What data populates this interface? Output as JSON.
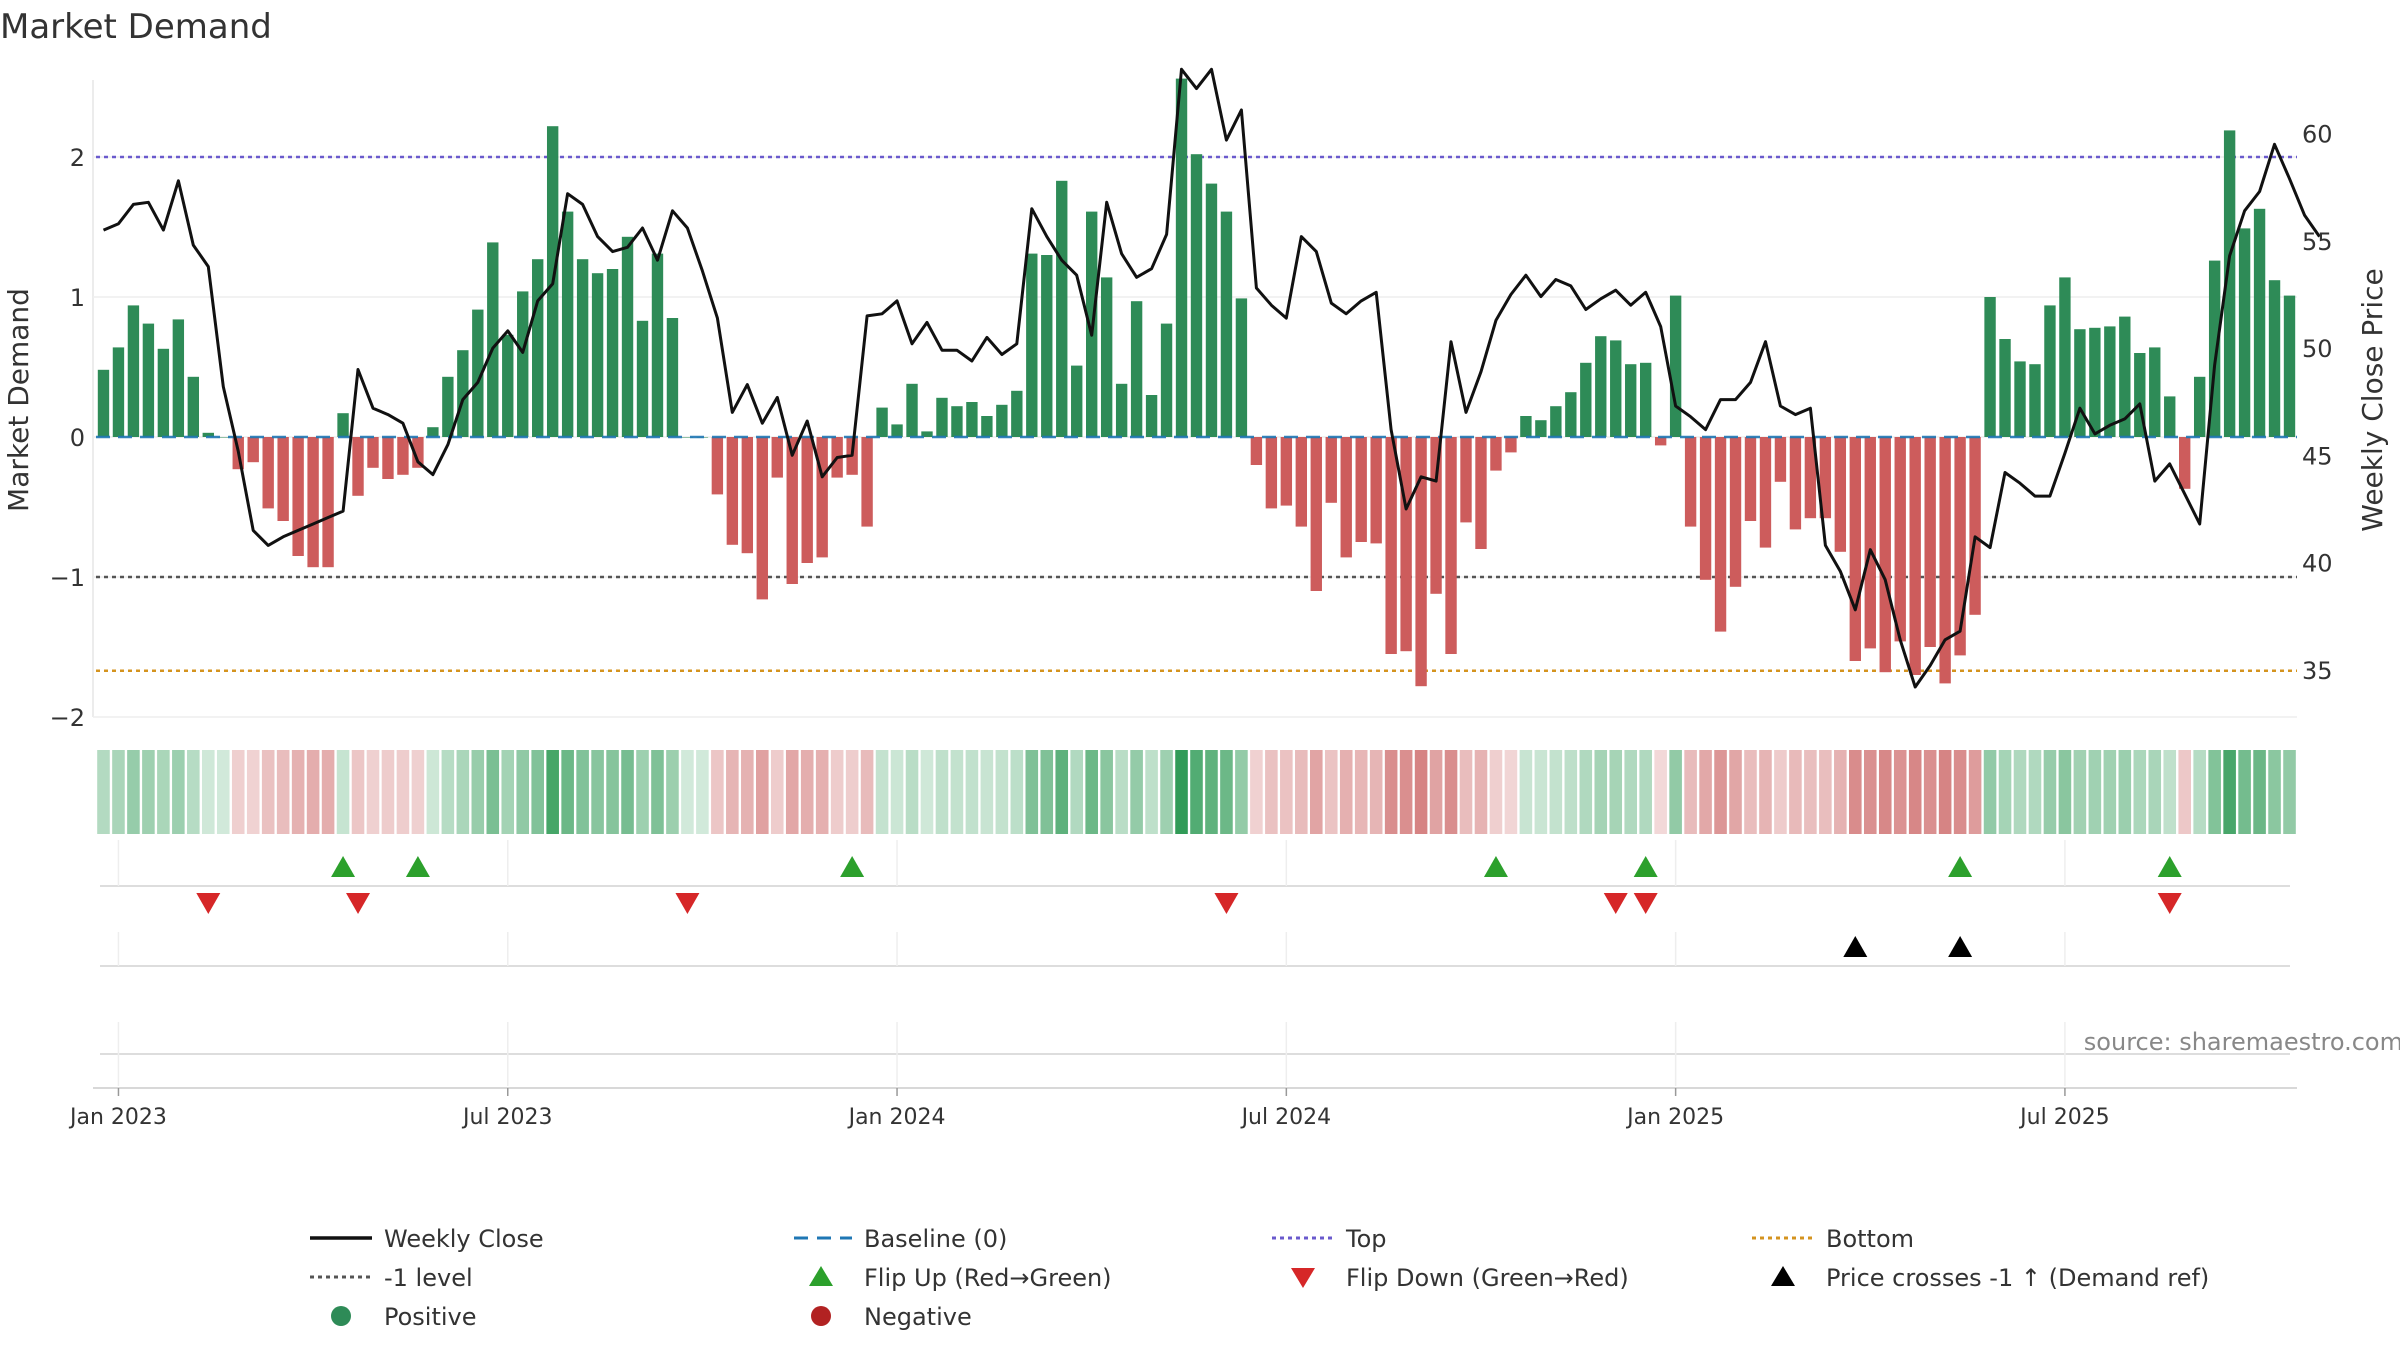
{
  "chart_data": {
    "type": "bar",
    "title": "Market Demand",
    "ylabel_left": "Market Demand",
    "ylabel_right": "Weekly Close Price",
    "source": "source: sharemaestro.com",
    "left_axis": {
      "ylim": [
        -2.0,
        2.55
      ],
      "ticks": [
        "2",
        "1",
        "0",
        "−1",
        "−2"
      ],
      "tick_values": [
        2,
        1,
        0,
        -1,
        -2
      ]
    },
    "right_axis": {
      "ylim": [
        32.8,
        62.5
      ],
      "ticks": [
        "60",
        "55",
        "50",
        "45",
        "40",
        "35"
      ],
      "tick_values": [
        60,
        55,
        50,
        45,
        40,
        35
      ]
    },
    "x_ticks": [
      "Jan 2023",
      "Jul 2023",
      "Jan 2024",
      "Jul 2024",
      "Jan 2025",
      "Jul 2025"
    ],
    "x_tick_weeks": [
      1,
      27,
      53,
      79,
      105,
      131
    ],
    "reference_lines": {
      "top": 2.0,
      "minus_one": -1.0,
      "bottom": -1.67,
      "baseline": 0
    },
    "colors": {
      "positive": "#2e8b57",
      "negative": "#cd5c5c",
      "price": "#111111",
      "top_line": "#6a5acd",
      "minus_one_line": "#555555",
      "bottom_line": "#d4931f",
      "baseline": "#1f77b4",
      "flip_up": "#2ca02c",
      "flip_down": "#d62728",
      "price_cross": "#000000"
    },
    "demand": [
      0.48,
      0.64,
      0.94,
      0.81,
      0.63,
      0.84,
      0.43,
      0.03,
      0.0,
      -0.23,
      -0.18,
      -0.51,
      -0.6,
      -0.85,
      -0.93,
      -0.93,
      0.17,
      -0.42,
      -0.22,
      -0.3,
      -0.27,
      -0.22,
      0.07,
      0.43,
      0.62,
      0.91,
      1.39,
      0.73,
      1.04,
      1.27,
      2.22,
      1.61,
      1.27,
      1.17,
      1.2,
      1.43,
      0.83,
      1.31,
      0.85,
      0.0,
      0.0,
      -0.41,
      -0.77,
      -0.83,
      -1.16,
      -0.29,
      -1.05,
      -0.9,
      -0.86,
      -0.29,
      -0.27,
      -0.64,
      0.21,
      0.09,
      0.38,
      0.04,
      0.28,
      0.22,
      0.25,
      0.15,
      0.23,
      0.33,
      1.31,
      1.3,
      1.83,
      0.51,
      1.61,
      1.14,
      0.38,
      0.97,
      0.3,
      0.81,
      2.56,
      2.02,
      1.81,
      1.61,
      0.99,
      -0.2,
      -0.51,
      -0.49,
      -0.64,
      -1.1,
      -0.47,
      -0.86,
      -0.75,
      -0.76,
      -1.55,
      -1.53,
      -1.78,
      -1.12,
      -1.55,
      -0.61,
      -0.8,
      -0.24,
      -0.11,
      0.15,
      0.12,
      0.22,
      0.32,
      0.53,
      0.72,
      0.69,
      0.52,
      0.53,
      -0.06,
      1.01,
      -0.64,
      -1.02,
      -1.39,
      -1.07,
      -0.6,
      -0.79,
      -0.32,
      -0.66,
      -0.58,
      -0.58,
      -0.82,
      -1.6,
      -1.51,
      -1.68,
      -1.46,
      -1.7,
      -1.5,
      -1.76,
      -1.56,
      -1.27,
      1.0,
      0.7,
      0.54,
      0.52,
      0.94,
      1.14,
      0.77,
      0.78,
      0.79,
      0.86,
      0.6,
      0.64,
      0.29,
      -0.37,
      0.43,
      1.26,
      2.19,
      1.49,
      1.63,
      1.12,
      1.01
    ],
    "price": [
      55.5,
      55.8,
      56.7,
      56.8,
      55.5,
      57.8,
      54.8,
      53.8,
      48.2,
      45.2,
      41.5,
      40.8,
      41.2,
      41.5,
      41.8,
      42.1,
      42.4,
      49.0,
      47.2,
      46.9,
      46.5,
      44.7,
      44.1,
      45.5,
      47.6,
      48.4,
      50.0,
      50.8,
      49.8,
      52.2,
      53.0,
      57.2,
      56.7,
      55.2,
      54.5,
      54.7,
      55.6,
      54.1,
      56.4,
      55.6,
      53.6,
      51.4,
      47.0,
      48.3,
      46.5,
      47.7,
      45.0,
      46.6,
      44.0,
      44.9,
      45.0,
      51.5,
      51.6,
      52.2,
      50.2,
      51.2,
      49.9,
      49.9,
      49.4,
      50.5,
      49.7,
      50.2,
      56.5,
      55.2,
      54.1,
      53.4,
      50.6,
      56.8,
      54.4,
      53.3,
      53.7,
      55.3,
      63.0,
      62.1,
      63.0,
      59.7,
      61.1,
      52.8,
      52.0,
      51.4,
      55.2,
      54.5,
      52.1,
      51.6,
      52.2,
      52.6,
      46.2,
      42.5,
      44.0,
      43.8,
      50.3,
      47.0,
      48.9,
      51.3,
      52.5,
      53.4,
      52.4,
      53.2,
      52.9,
      51.8,
      52.3,
      52.7,
      52.0,
      52.6,
      51.0,
      47.3,
      46.8,
      46.2,
      47.6,
      47.6,
      48.4,
      50.3,
      47.3,
      46.9,
      47.2,
      40.8,
      39.6,
      37.8,
      40.6,
      39.2,
      36.4,
      34.2,
      35.2,
      36.4,
      36.8,
      41.2,
      40.7,
      44.2,
      43.7,
      43.1,
      43.1,
      45.1,
      47.2,
      46.0,
      46.4,
      46.7,
      47.4,
      43.8,
      44.6,
      43.2,
      41.8,
      49.2,
      54.3,
      56.4,
      57.3,
      59.5,
      57.9,
      56.2,
      55.2
    ],
    "flip_up_weeks": [
      16,
      21,
      50,
      93,
      103,
      124,
      138
    ],
    "flip_down_weeks": [
      7,
      17,
      39,
      75,
      101,
      103,
      138
    ],
    "price_cross_weeks": [
      117,
      124
    ],
    "legend": [
      {
        "label": "Weekly Close",
        "symbol": "line",
        "color": "#111111"
      },
      {
        "label": "Baseline (0)",
        "symbol": "dashed",
        "color": "#1f77b4"
      },
      {
        "label": "Top",
        "symbol": "dotted",
        "color": "#6a5acd"
      },
      {
        "label": "Bottom",
        "symbol": "dotted",
        "color": "#d4931f"
      },
      {
        "label": "-1 level",
        "symbol": "dotted",
        "color": "#555555"
      },
      {
        "label": "Flip Up (Red→Green)",
        "symbol": "triangle-up",
        "color": "#2ca02c"
      },
      {
        "label": "Flip Down (Green→Red)",
        "symbol": "triangle-down",
        "color": "#d62728"
      },
      {
        "label": "Price crosses -1 ↑ (Demand ref)",
        "symbol": "triangle-up",
        "color": "#000000"
      },
      {
        "label": "Positive",
        "symbol": "circle",
        "color": "#2e8b57"
      },
      {
        "label": "Negative",
        "symbol": "circle",
        "color": "#b22222"
      }
    ]
  }
}
